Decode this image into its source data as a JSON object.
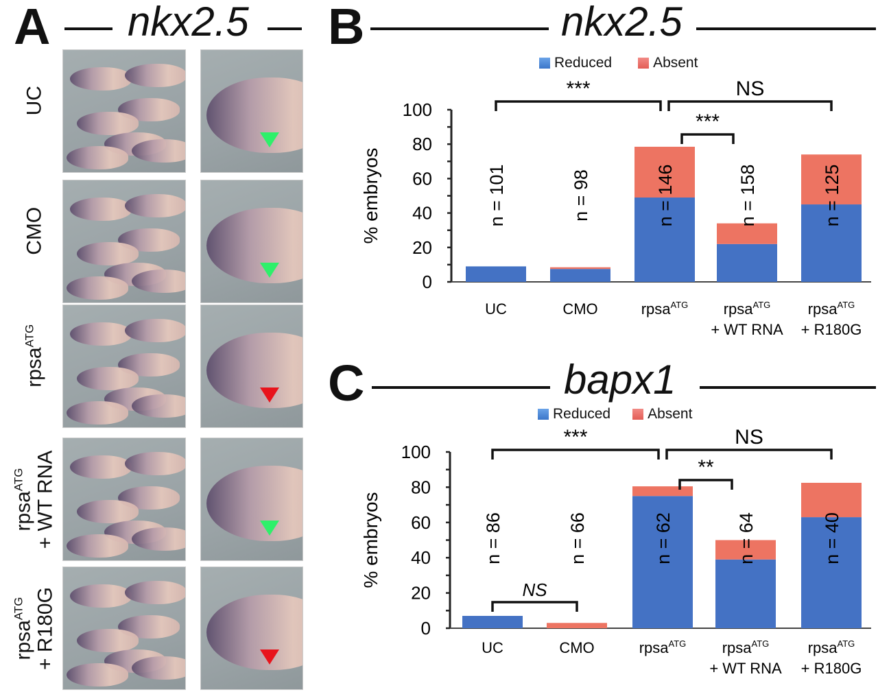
{
  "panel_a": {
    "letter": "A",
    "gene": "nkx2.5",
    "rows": [
      {
        "label_main": "UC",
        "label_sup": "",
        "label_line2": "",
        "arrow": "green"
      },
      {
        "label_main": "CMO",
        "label_sup": "",
        "label_line2": "",
        "arrow": "green"
      },
      {
        "label_main": "rpsa",
        "label_sup": "ATG",
        "label_line2": "",
        "arrow": "red"
      },
      {
        "label_main": "rpsa",
        "label_sup": "ATG",
        "label_line2": "+ WT RNA",
        "arrow": "green"
      },
      {
        "label_main": "rpsa",
        "label_sup": "ATG",
        "label_line2": "+ R180G",
        "arrow": "red"
      }
    ],
    "arrow_colors": {
      "green": "#2ef06a",
      "red": "#e8141c"
    }
  },
  "colors": {
    "reduced": "#4472c4",
    "absent": "#ed7462",
    "text": "#111111"
  },
  "chart_data": [
    {
      "panel": "B",
      "type": "bar",
      "stacked": true,
      "title": "nkx2.5",
      "xlabel": "",
      "ylabel": "% embryos",
      "ylim": [
        0,
        100
      ],
      "yticks": [
        0,
        20,
        40,
        60,
        80,
        100
      ],
      "legend": {
        "position": "top-center",
        "entries": [
          "Reduced",
          "Absent"
        ]
      },
      "categories": [
        {
          "main": "UC",
          "sup": "",
          "line2": ""
        },
        {
          "main": "CMO",
          "sup": "",
          "line2": ""
        },
        {
          "main": "rpsa",
          "sup": "ATG",
          "line2": ""
        },
        {
          "main": "rpsa",
          "sup": "ATG",
          "line2": "+ WT RNA"
        },
        {
          "main": "rpsa",
          "sup": "ATG",
          "line2": "+ R180G"
        }
      ],
      "series": [
        {
          "name": "Reduced",
          "values": [
            9,
            7.5,
            49,
            22,
            45
          ]
        },
        {
          "name": "Absent",
          "values": [
            0,
            1,
            29.5,
            12,
            29
          ]
        }
      ],
      "n_labels": [
        "n = 101",
        "n = 98",
        "n = 146",
        "n = 158",
        "n = 125"
      ],
      "significance": [
        {
          "from": 0,
          "to": 2,
          "label": "***",
          "level": 1
        },
        {
          "from": 2,
          "to": 4,
          "label": "NS",
          "level": 1
        },
        {
          "from": 2,
          "to": 3,
          "label": "***",
          "level": 0
        }
      ]
    },
    {
      "panel": "C",
      "type": "bar",
      "stacked": true,
      "title": "bapx1",
      "xlabel": "",
      "ylabel": "% embryos",
      "ylim": [
        0,
        100
      ],
      "yticks": [
        0,
        20,
        40,
        60,
        80,
        100
      ],
      "legend": {
        "position": "top-center",
        "entries": [
          "Reduced",
          "Absent"
        ]
      },
      "categories": [
        {
          "main": "UC",
          "sup": "",
          "line2": ""
        },
        {
          "main": "CMO",
          "sup": "",
          "line2": ""
        },
        {
          "main": "rpsa",
          "sup": "ATG",
          "line2": ""
        },
        {
          "main": "rpsa",
          "sup": "ATG",
          "line2": "+ WT RNA"
        },
        {
          "main": "rpsa",
          "sup": "ATG",
          "line2": "+ R180G"
        }
      ],
      "series": [
        {
          "name": "Reduced",
          "values": [
            7,
            0,
            75,
            39,
            63
          ]
        },
        {
          "name": "Absent",
          "values": [
            0,
            3,
            5.5,
            11,
            19.5
          ]
        }
      ],
      "n_labels": [
        "n = 86",
        "n = 66",
        "n = 62",
        "n = 64",
        "n = 40"
      ],
      "significance": [
        {
          "from": 0,
          "to": 2,
          "label": "***",
          "level": 1
        },
        {
          "from": 2,
          "to": 4,
          "label": "NS",
          "level": 1
        },
        {
          "from": 2,
          "to": 3,
          "label": "**",
          "level": 0
        },
        {
          "from": 0,
          "to": 1,
          "label": "NS",
          "level": -1
        }
      ]
    }
  ]
}
